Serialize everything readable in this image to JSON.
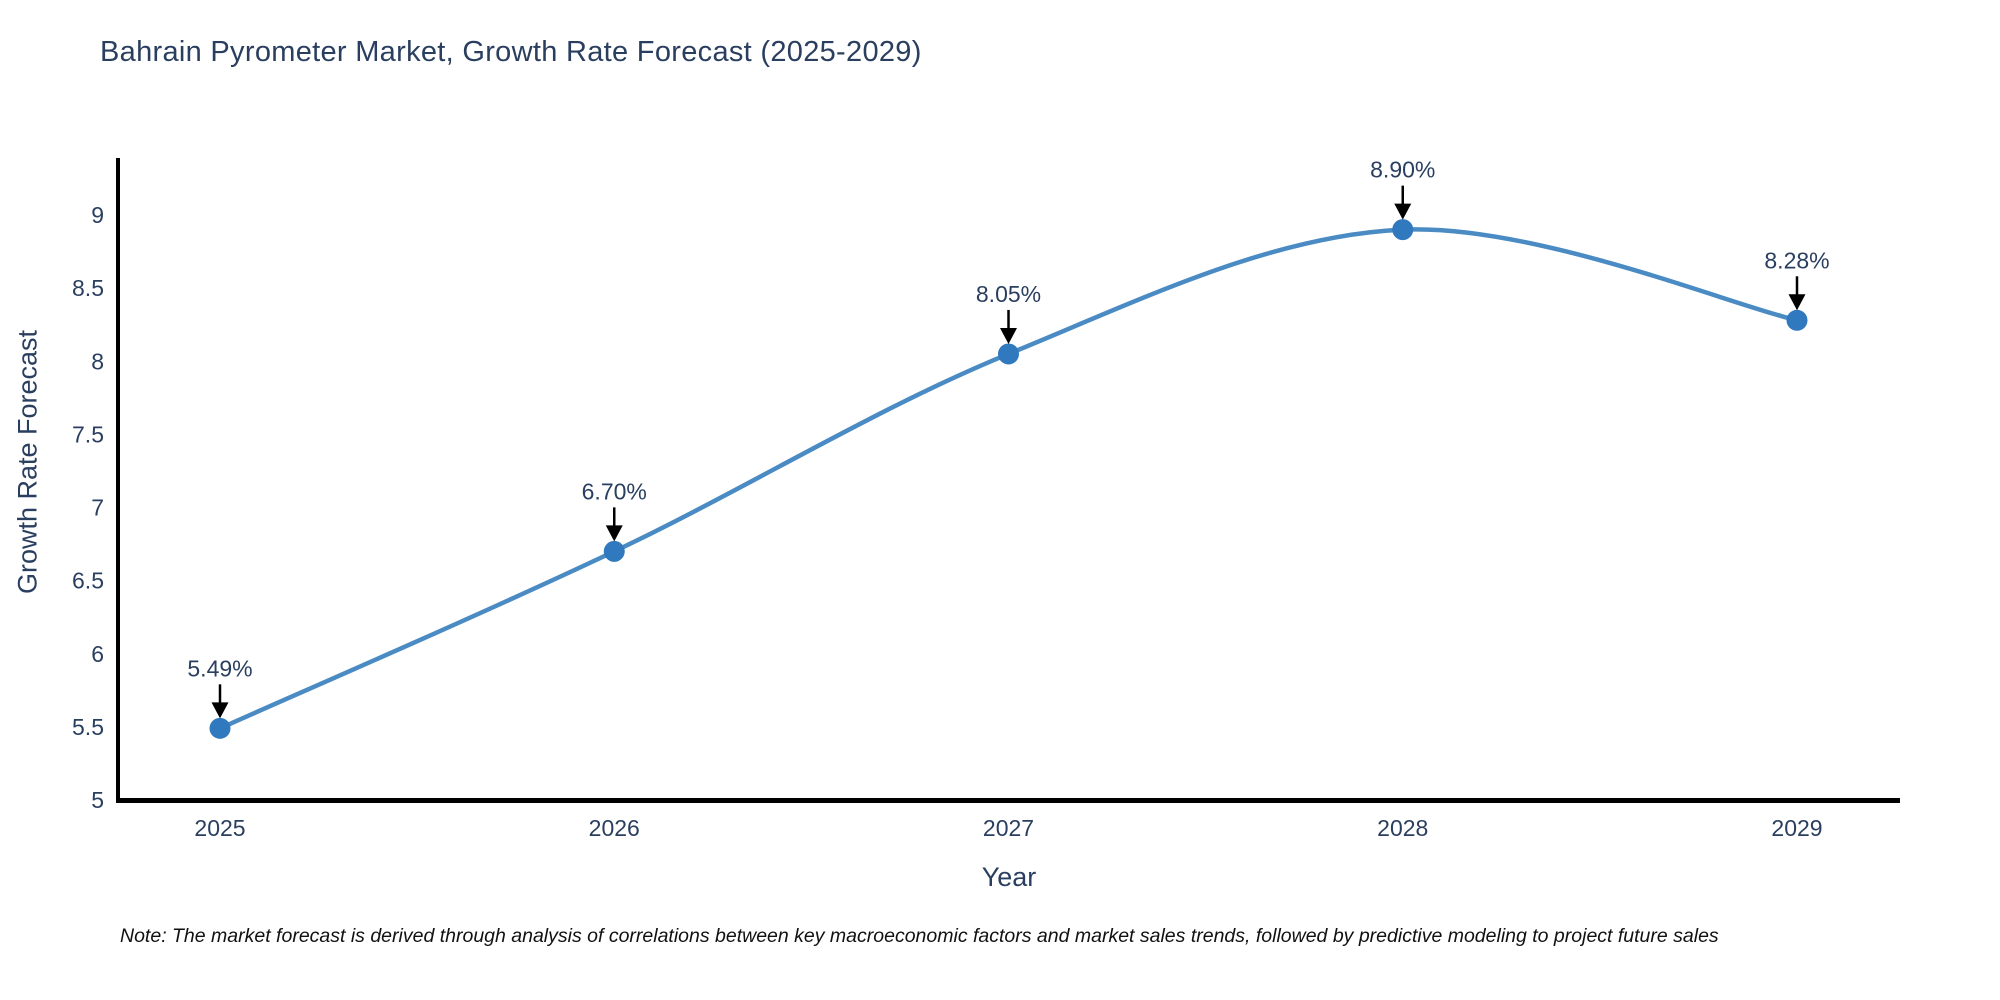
{
  "page": {
    "note": "Note: The market forecast is derived through analysis of correlations between key macroeconomic factors and market sales trends, followed by predictive modeling to project future sales"
  },
  "chart_data": {
    "type": "line",
    "title": "Bahrain Pyrometer Market, Growth Rate Forecast (2025-2029)",
    "xlabel": "Year",
    "ylabel": "Growth Rate Forecast",
    "x": [
      2025,
      2026,
      2027,
      2028,
      2029
    ],
    "y": [
      5.49,
      6.7,
      8.05,
      8.9,
      8.28
    ],
    "point_labels": [
      "5.49%",
      "6.70%",
      "8.05%",
      "8.90%",
      "8.28%"
    ],
    "xtick_labels": [
      "2025",
      "2026",
      "2027",
      "2028",
      "2029"
    ],
    "yticks": [
      5,
      5.5,
      6,
      6.5,
      7,
      7.5,
      8,
      8.5,
      9
    ],
    "ytick_labels": [
      "5",
      "5.5",
      "6",
      "6.5",
      "7",
      "7.5",
      "8",
      "8.5",
      "9"
    ],
    "ylim": [
      5,
      9.35
    ],
    "line_shape": "spline",
    "grid": false,
    "legend_position": "none",
    "line_color": "#4a8bc4",
    "marker_color": "#3179be",
    "axis_color": "#000000",
    "text_color": "#2a3f5f",
    "annotation_arrow_color": "#000000"
  }
}
